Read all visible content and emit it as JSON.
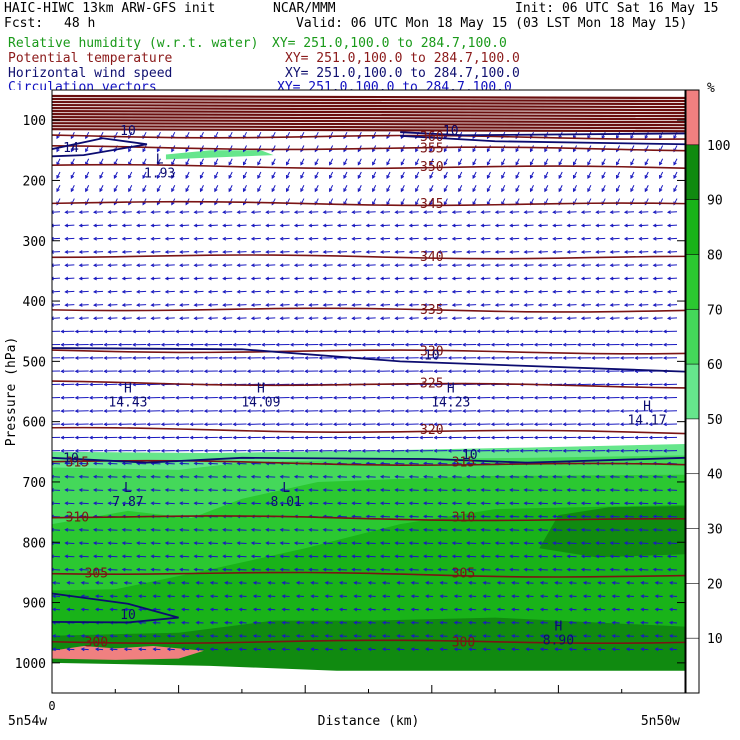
{
  "header": {
    "title": "HAIC-HIWC 13km ARW-GFS init",
    "center": "NCAR/MMM",
    "init": "Init: 06 UTC Sat 16 May 15",
    "fcst_label": "Fcst:",
    "fcst_value": "48 h",
    "valid": "Valid: 06 UTC Mon 18 May 15 (03 LST Mon 18 May 15)",
    "fields": [
      {
        "name": "Relative humidity (w.r.t. water)",
        "xy": "XY= 251.0,100.0 to 284.7,100.0",
        "color": "#1a9a1a"
      },
      {
        "name": "Potential temperature",
        "xy": "XY= 251.0,100.0 to 284.7,100.0",
        "color": "#8b1a1a"
      },
      {
        "name": "Horizontal wind speed",
        "xy": "XY= 251.0,100.0 to 284.7,100.0",
        "color": "#101070"
      },
      {
        "name": "Circulation vectors",
        "xy": "XY= 251.0,100.0 to 284.7,100.0",
        "color": "#1010c0"
      }
    ]
  },
  "chart_data": {
    "type": "heatmap",
    "title": "",
    "xlabel": "Distance (km)",
    "ylabel": "Pressure (hPa)",
    "x_start_tick": "0",
    "x_left_label": "5n54w",
    "x_right_label": "5n50w",
    "ylim": [
      1050,
      50
    ],
    "yticks": [
      100,
      200,
      300,
      400,
      500,
      600,
      700,
      800,
      900,
      1000
    ],
    "colorbar": {
      "unit": "%",
      "levels": [
        10,
        20,
        30,
        40,
        50,
        60,
        70,
        80,
        90,
        100
      ],
      "bands": [
        {
          "from": 0,
          "to": 50,
          "color": "#ffffff"
        },
        {
          "from": 50,
          "to": 60,
          "color": "#66e68c"
        },
        {
          "from": 60,
          "to": 70,
          "color": "#44d85a"
        },
        {
          "from": 70,
          "to": 80,
          "color": "#2bc831"
        },
        {
          "from": 80,
          "to": 90,
          "color": "#19b319"
        },
        {
          "from": 90,
          "to": 100,
          "color": "#108a10"
        },
        {
          "from": 100,
          "to": 110,
          "color": "#f08080"
        }
      ]
    },
    "theta_contours": [
      {
        "label": "300",
        "p": 965
      },
      {
        "label": "305",
        "p": 850
      },
      {
        "label": "310",
        "p": 757
      },
      {
        "label": "315",
        "p": 666
      },
      {
        "label": "320",
        "p": 612
      },
      {
        "label": "325",
        "p": 535
      },
      {
        "label": "330",
        "p": 482
      },
      {
        "label": "335",
        "p": 413
      },
      {
        "label": "340",
        "p": 325
      },
      {
        "label": "345",
        "p": 237
      },
      {
        "label": "350",
        "p": 176
      },
      {
        "label": "355",
        "p": 145
      },
      {
        "label": "360",
        "p": 126
      }
    ],
    "wind_contour_labels": [
      "10",
      "10",
      "10",
      "10",
      "10",
      "10",
      "14"
    ],
    "extrema": [
      {
        "kind": "L",
        "value": "1.93",
        "x_frac": 0.17,
        "p": 175
      },
      {
        "kind": "H",
        "value": "14.43",
        "x_frac": 0.12,
        "p": 555
      },
      {
        "kind": "H",
        "value": "14.09",
        "x_frac": 0.33,
        "p": 555
      },
      {
        "kind": "H",
        "value": "14.23",
        "x_frac": 0.63,
        "p": 555
      },
      {
        "kind": "H",
        "value": "14.17",
        "x_frac": 0.94,
        "p": 585
      },
      {
        "kind": "L",
        "value": "7.87",
        "x_frac": 0.12,
        "p": 720
      },
      {
        "kind": "L",
        "value": "8.01",
        "x_frac": 0.37,
        "p": 720
      },
      {
        "kind": "H",
        "value": "8.90",
        "x_frac": 0.8,
        "p": 950
      }
    ]
  }
}
